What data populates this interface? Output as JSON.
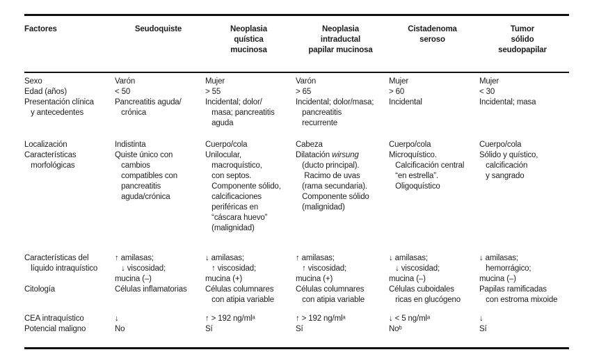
{
  "table": {
    "header": [
      "Factores",
      "Seudoquiste",
      "Neoplasia\nquística\nmucinosa",
      "Neoplasia\nintraductal\npapilar mucinosa",
      "Cistadenoma\nseroso",
      "Tumor\nsólido\nseudopapilar"
    ],
    "groups": [
      {
        "rows": [
          {
            "cells": [
              "Sexo",
              "Varón",
              "Mujer",
              "Varón",
              "Mujer",
              "Mujer"
            ]
          },
          {
            "cells": [
              "Edad (años)",
              "< 50",
              "> 55",
              "> 65",
              "> 60",
              "< 30"
            ]
          },
          {
            "cells": [
              "Presentación clínica\n   y antecedentes",
              "Pancreatitis aguda/\n   crónica",
              "Incidental; dolor/\n   masa; pancreatitis\n   aguda",
              "Incidental; dolor/masa;\n   pancreatitis\n   recurrente",
              "Incidental",
              "Incidental; masa"
            ]
          }
        ]
      },
      {
        "rows": [
          {
            "cells": [
              "Localización",
              "Indistinta",
              "Cuerpo/cola",
              "Cabeza",
              "Cuerpo/cola",
              "Cuerpo/cola"
            ]
          },
          {
            "cells": [
              "Características\n   morfológicas",
              "Quiste único con\n   cambios\n   compatibles con\n   pancreatitis\n   aguda/crónica",
              "Unilocular,\n   macroquístico,\n   con septos.\n   Componente sólido,\n   calcificaciones\n   periféricas en\n   “cáscara huevo”\n   (malignidad)",
              "Dilatación *wirsung*\n   (ducto principal).\n    Racimo de uvas\n   (rama secundaria).\n   Componente sólido\n   (malignidad)",
              "Microquístico.\n   Calcificación central\n   “en estrella”.\n   Oligoquístico",
              "Sólido y quístico,\n   calcificación\n   y sangrado"
            ]
          }
        ]
      },
      {
        "rows": [
          {
            "cells": [
              "Características del\n   líquido intraquístico",
              "↑ amilasas;\n   ↓ viscosidad;\nmucina (–)",
              "↓ amilasas;\n   ↑ viscosidad;\nmucina (+)",
              "↑ amilasas;\n   ↑ viscosidad;\nmucina (+)",
              "↓ amilasas;\n   ↓ viscosidad;\nmucina (–)",
              "↓ amilasas;\n   hemorrágico;\nmucina (–)"
            ]
          },
          {
            "cells": [
              "Citología",
              "Células inflamatorias",
              "Células columnares\n   con atipia variable",
              "Células columnares\n   con atipia variable",
              "Células cuboidales\n   ricas en glucógeno",
              "Papilas ramificadas\n   con estroma mixoide"
            ]
          }
        ]
      },
      {
        "rows": [
          {
            "cells": [
              "CEA intraquístico",
              "↓",
              "↑ > 192 ng/mlᵃ",
              "↑ > 192 ng/mlᵃ",
              "↓ < 5 ng/mlᵃ",
              "↓"
            ]
          },
          {
            "cells": [
              "Potencial maligno",
              "No",
              "Sí",
              "Sí",
              "Noᵇ",
              "Sí"
            ]
          }
        ]
      }
    ]
  },
  "colors": {
    "text": "#1c1c1c",
    "rule": "#111111",
    "background": "#ffffff"
  }
}
